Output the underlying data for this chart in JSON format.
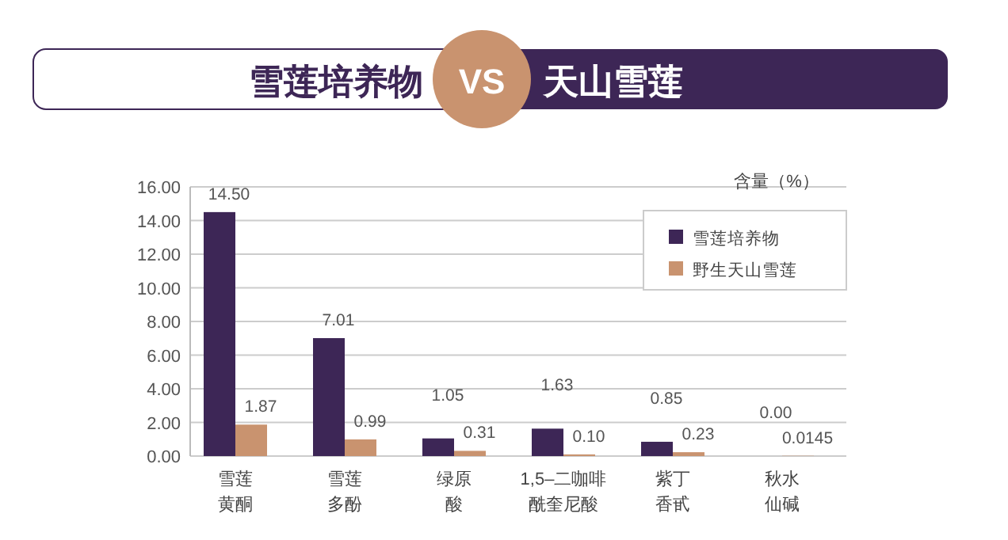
{
  "chart_data": {
    "type": "bar",
    "title": "雪莲培养物 VS 天山雪莲",
    "ylabel": "含量（%）",
    "categories": [
      "雪莲黄酮",
      "雪莲多酚",
      "绿原酸",
      "1,5–二咖啡酰奎尼酸",
      "紫丁香甙",
      "秋水仙碱"
    ],
    "series": [
      {
        "name": "雪莲培养物",
        "color": "#3d2656",
        "values": [
          14.5,
          7.01,
          1.05,
          1.63,
          0.85,
          0.0
        ],
        "value_labels": [
          "14.50",
          "7.01",
          "1.05",
          "1.63",
          "0.85",
          "0.00"
        ]
      },
      {
        "name": "野生天山雪莲",
        "color": "#c9936f",
        "values": [
          1.87,
          0.99,
          0.31,
          0.1,
          0.23,
          0.0145
        ],
        "value_labels": [
          "1.87",
          "0.99",
          "0.31",
          "0.10",
          "0.23",
          "0.0145"
        ]
      }
    ],
    "ylim": [
      0,
      16
    ],
    "yticks": [
      {
        "value": 0,
        "label": "0.00"
      },
      {
        "value": 2,
        "label": "2.00"
      },
      {
        "value": 4,
        "label": "4.00"
      },
      {
        "value": 6,
        "label": "6.00"
      },
      {
        "value": 8,
        "label": "8.00"
      },
      {
        "value": 10,
        "label": "10.00"
      },
      {
        "value": 12,
        "label": "12.00"
      },
      {
        "value": 14,
        "label": "14.00"
      },
      {
        "value": 16,
        "label": "16.00"
      }
    ],
    "grid": "y",
    "legend": "top right"
  }
}
